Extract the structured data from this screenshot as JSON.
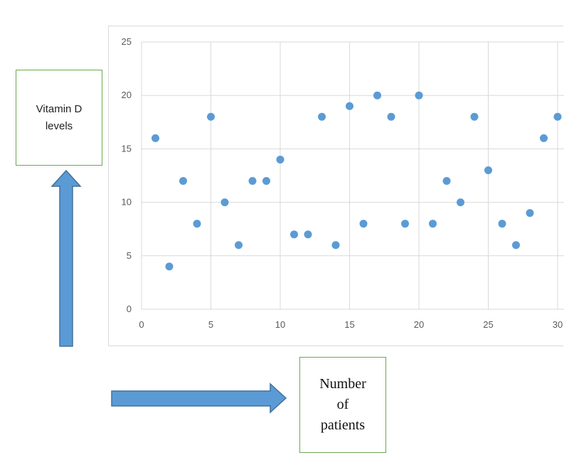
{
  "chart_data": {
    "type": "scatter",
    "title": "",
    "xlabel": "",
    "ylabel": "",
    "xlim": [
      0,
      30
    ],
    "ylim": [
      0,
      25
    ],
    "x_ticks": [
      0,
      5,
      10,
      15,
      20,
      25,
      30
    ],
    "y_ticks": [
      0,
      5,
      10,
      15,
      20,
      25
    ],
    "grid": true,
    "legend": "none",
    "series": [
      {
        "color": "#5b9bd5",
        "points": [
          {
            "x": 1,
            "y": 16
          },
          {
            "x": 2,
            "y": 4
          },
          {
            "x": 3,
            "y": 12
          },
          {
            "x": 4,
            "y": 8
          },
          {
            "x": 5,
            "y": 18
          },
          {
            "x": 6,
            "y": 10
          },
          {
            "x": 7,
            "y": 6
          },
          {
            "x": 8,
            "y": 12
          },
          {
            "x": 9,
            "y": 12
          },
          {
            "x": 10,
            "y": 14
          },
          {
            "x": 11,
            "y": 7
          },
          {
            "x": 12,
            "y": 7
          },
          {
            "x": 13,
            "y": 18
          },
          {
            "x": 14,
            "y": 6
          },
          {
            "x": 15,
            "y": 19
          },
          {
            "x": 16,
            "y": 8
          },
          {
            "x": 17,
            "y": 20
          },
          {
            "x": 18,
            "y": 18
          },
          {
            "x": 19,
            "y": 8
          },
          {
            "x": 20,
            "y": 20
          },
          {
            "x": 21,
            "y": 8
          },
          {
            "x": 22,
            "y": 12
          },
          {
            "x": 23,
            "y": 10
          },
          {
            "x": 24,
            "y": 18
          },
          {
            "x": 25,
            "y": 13
          },
          {
            "x": 26,
            "y": 8
          },
          {
            "x": 27,
            "y": 6
          },
          {
            "x": 28,
            "y": 9
          },
          {
            "x": 29,
            "y": 16
          },
          {
            "x": 30,
            "y": 18
          }
        ]
      }
    ]
  },
  "annotations": {
    "y_axis_label": "Vitamin D\nlevels",
    "x_axis_label": "Number\nof\npatients",
    "box_border_color": "#6aa84f",
    "arrow_color": "#5b9bd5",
    "arrow_stroke_color": "#41719c"
  }
}
